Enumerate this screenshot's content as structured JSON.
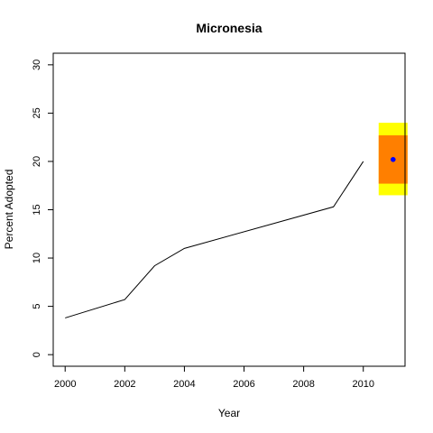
{
  "chart_data": {
    "type": "line",
    "title": "Micronesia",
    "xlabel": "Year",
    "ylabel": "Percent Adopted",
    "xlim": [
      1999.6,
      2011.4
    ],
    "ylim": [
      -1.2,
      31.2
    ],
    "x_ticks": [
      2000,
      2002,
      2004,
      2006,
      2008,
      2010
    ],
    "y_ticks": [
      0,
      5,
      10,
      15,
      20,
      25,
      30
    ],
    "grid": false,
    "legend": "none",
    "series": [
      {
        "x": [
          2000,
          2002,
          2003,
          2004,
          2009,
          2010
        ],
        "y": [
          3.8,
          5.7,
          9.2,
          11.0,
          15.3,
          20.0
        ],
        "color": "#000000"
      }
    ],
    "projection": {
      "x": 2011,
      "point": 20.2,
      "outer_interval": [
        16.5,
        24.0
      ],
      "inner_interval": [
        17.7,
        22.7
      ],
      "outer_color": "#ffff00",
      "inner_color": "#ff7f00",
      "point_color": "#0000ff"
    }
  }
}
